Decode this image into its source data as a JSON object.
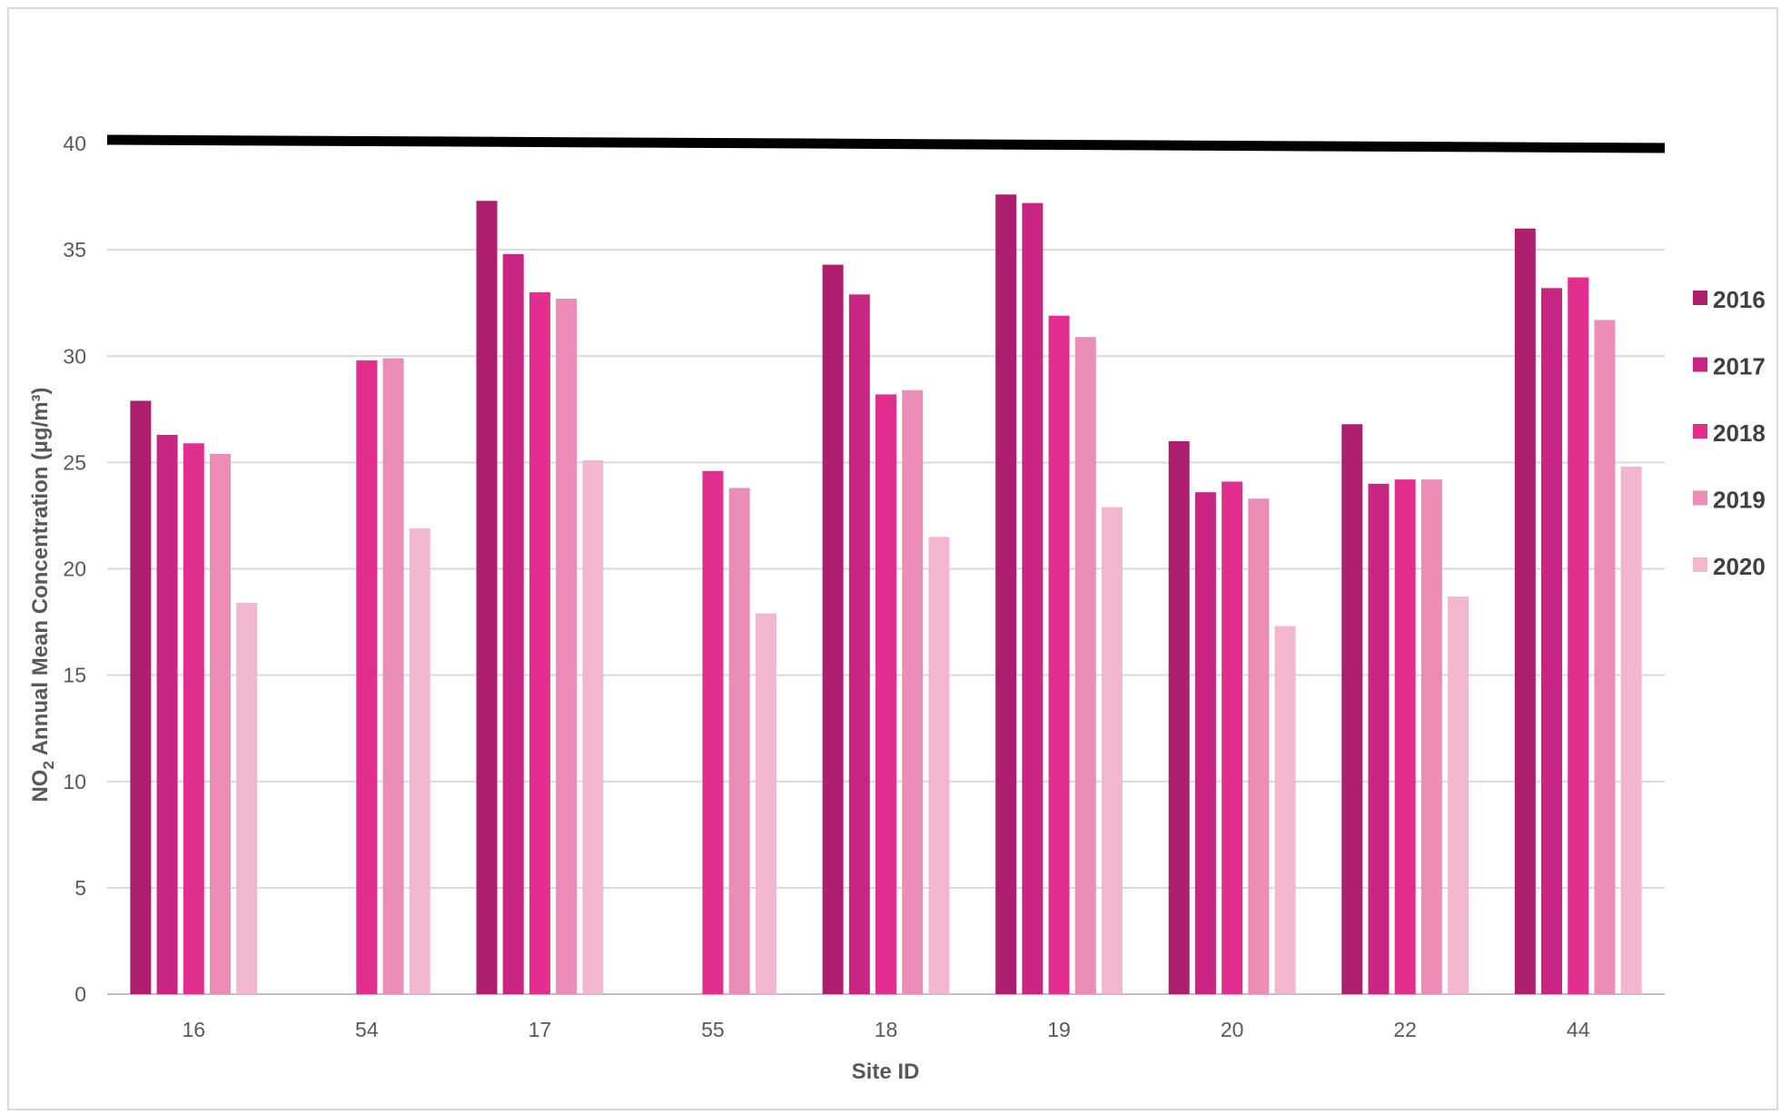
{
  "chart_data": {
    "type": "bar",
    "title": "",
    "xlabel": "Site ID",
    "ylabel_prefix": "NO",
    "ylabel_sub": "2",
    "ylabel_suffix": " Annual Mean Concentration (µg/m³)",
    "categories": [
      "16",
      "54",
      "17",
      "55",
      "18",
      "19",
      "20",
      "22",
      "44"
    ],
    "ylim": [
      0,
      40
    ],
    "yticks": [
      "0",
      "5",
      "10",
      "15",
      "20",
      "25",
      "30",
      "35",
      "40"
    ],
    "grid": true,
    "legend_position": "right",
    "reference_line": {
      "value": 40,
      "color": "#000000"
    },
    "series": [
      {
        "name": "2016",
        "color": "#ad1f6e",
        "values": [
          27.9,
          null,
          37.3,
          null,
          34.3,
          37.6,
          26.0,
          26.8,
          36.0
        ]
      },
      {
        "name": "2017",
        "color": "#c92684",
        "values": [
          26.3,
          null,
          34.8,
          null,
          32.9,
          37.2,
          23.6,
          24.0,
          33.2
        ]
      },
      {
        "name": "2018",
        "color": "#e22e8f",
        "values": [
          25.9,
          29.8,
          33.0,
          24.6,
          28.2,
          31.9,
          24.1,
          24.2,
          33.7
        ]
      },
      {
        "name": "2019",
        "color": "#eb8db6",
        "values": [
          25.4,
          29.9,
          32.7,
          23.8,
          28.4,
          30.9,
          23.3,
          24.2,
          31.7
        ]
      },
      {
        "name": "2020",
        "color": "#f2b7ce",
        "values": [
          18.4,
          21.9,
          25.1,
          17.9,
          21.5,
          22.9,
          17.3,
          18.7,
          24.8
        ]
      }
    ]
  }
}
